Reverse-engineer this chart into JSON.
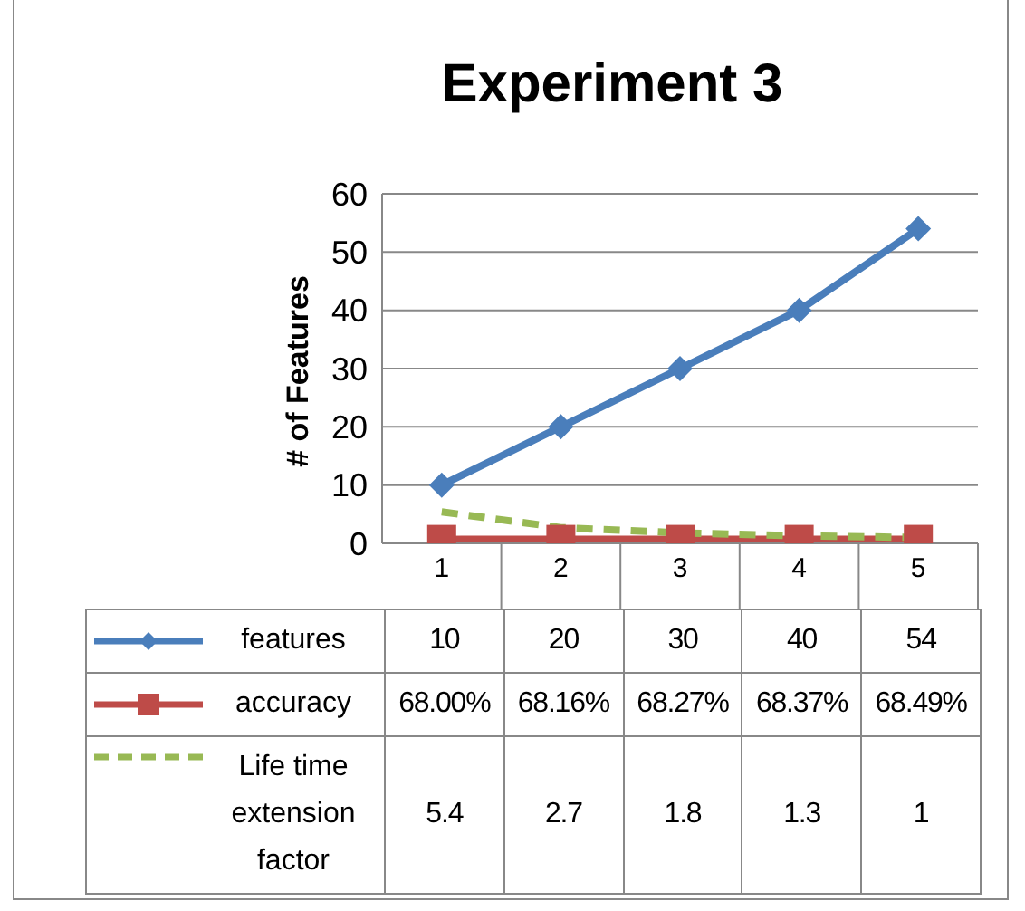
{
  "chart_data": {
    "type": "line",
    "title": "Experiment 3",
    "ylabel": "# of Features",
    "categories": [
      "1",
      "2",
      "3",
      "4",
      "5"
    ],
    "series": [
      {
        "name": "features",
        "color": "#4a7ebb",
        "values": [
          10,
          20,
          30,
          40,
          54
        ],
        "marker": "diamond",
        "line_style": "solid",
        "value_labels": [
          "10",
          "20",
          "30",
          "40",
          "54"
        ]
      },
      {
        "name": "accuracy",
        "color": "#be4b48",
        "values": [
          0.68,
          0.6816,
          0.6827,
          0.6837,
          0.6849
        ],
        "marker": "square",
        "line_style": "solid",
        "value_labels": [
          "68.00%",
          "68.16%",
          "68.27%",
          "68.37%",
          "68.49%"
        ]
      },
      {
        "name": "Life time extension factor",
        "color": "#98b954",
        "values": [
          5.4,
          2.7,
          1.8,
          1.3,
          1
        ],
        "marker": "none",
        "line_style": "dashed",
        "value_labels": [
          "5.4",
          "2.7",
          "1.8",
          "1.3",
          "1"
        ]
      }
    ],
    "ylim": [
      0,
      60
    ],
    "yticks": [
      0,
      10,
      20,
      30,
      40,
      50,
      60
    ],
    "grid": "y",
    "legend": "bottom"
  }
}
